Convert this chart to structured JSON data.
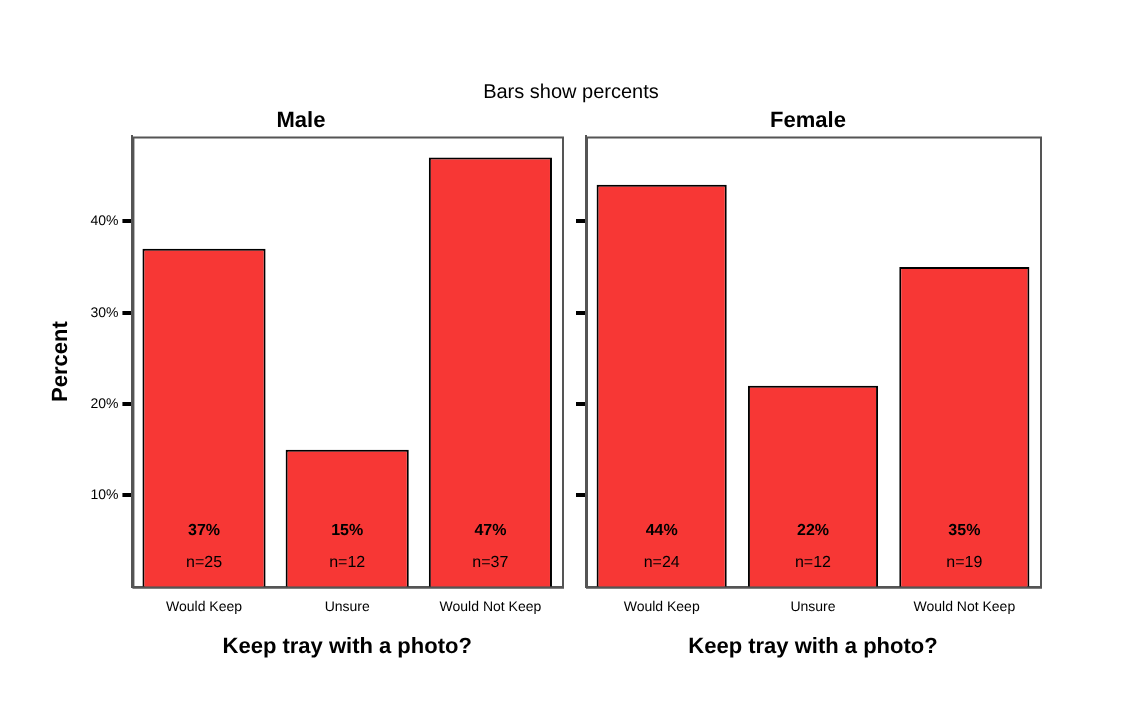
{
  "chart_data": [
    {
      "type": "bar",
      "title": "Male",
      "xlabel": "Keep tray with a photo?",
      "ylabel": "Percent",
      "annotations": [
        "Bars show percents",
        "n=25",
        "n=12",
        "n=37"
      ],
      "categories": [
        "Would Keep",
        "Unsure",
        "Would Not Keep"
      ],
      "values": [
        37,
        15,
        47
      ],
      "value_labels": [
        "37%",
        "15%",
        "47%"
      ],
      "color": "#f73735",
      "ylim": [
        0,
        49.3
      ],
      "yticks": [
        {
          "value": 10,
          "label": "10%"
        },
        {
          "value": 20,
          "label": "20%"
        },
        {
          "value": 30,
          "label": "30%"
        },
        {
          "value": 40,
          "label": "40%"
        }
      ],
      "grid": false
    },
    {
      "type": "bar",
      "title": "Female",
      "xlabel": "Keep tray with a photo?",
      "annotations": [
        "n=24",
        "n=12",
        "n=19"
      ],
      "categories": [
        "Would Keep",
        "Unsure",
        "Would Not Keep"
      ],
      "values": [
        44,
        22,
        35
      ],
      "value_labels": [
        "44%",
        "22%",
        "35%"
      ],
      "color": "#f73735",
      "ylim": [
        0,
        49.3
      ],
      "yticks": [
        {
          "value": 10,
          "label": null
        },
        {
          "value": 20,
          "label": null
        },
        {
          "value": 30,
          "label": null
        },
        {
          "value": 40,
          "label": null
        }
      ],
      "tick_labels": "x",
      "grid": false
    }
  ]
}
